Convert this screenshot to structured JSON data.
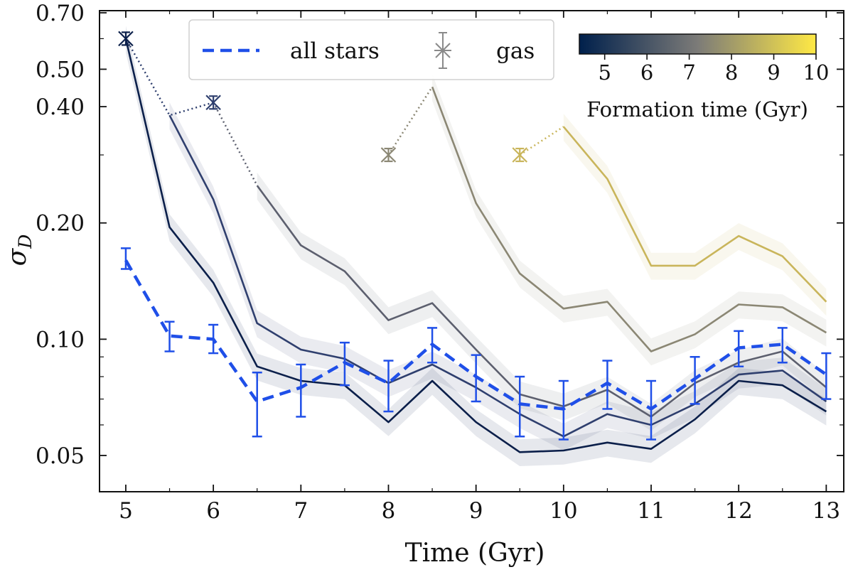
{
  "chart_data": {
    "type": "line",
    "xlabel": "Time (Gyr)",
    "ylabel": "σ_D",
    "ylabel_main": "σ",
    "ylabel_sub": "D",
    "yscale": "log",
    "xlim": [
      4.7,
      13.2
    ],
    "ylim": [
      0.04,
      0.7
    ],
    "xticks": [
      5,
      6,
      7,
      8,
      9,
      10,
      11,
      12,
      13
    ],
    "xtick_labels": [
      "5",
      "6",
      "7",
      "8",
      "9",
      "10",
      "11",
      "12",
      "13"
    ],
    "yticks": [
      0.05,
      0.1,
      0.2,
      0.4,
      0.5,
      0.7
    ],
    "ytick_labels": [
      "0.05",
      "0.10",
      "0.20",
      "0.40",
      "0.50",
      "0.70"
    ],
    "legend": {
      "position": "top-center",
      "entries": [
        {
          "label": "all stars",
          "style": "dashed-line",
          "color": "#1f4fe8"
        },
        {
          "label": "gas",
          "style": "errorbar-x",
          "color": "#8a8a8a"
        }
      ]
    },
    "colorbar": {
      "label": "Formation time (Gyr)",
      "range": [
        4.4,
        10
      ],
      "ticks": [
        5,
        6,
        7,
        8,
        9,
        10
      ],
      "tick_labels": [
        "5",
        "6",
        "7",
        "8",
        "9",
        "10"
      ],
      "position": "top-right"
    },
    "all_stars": {
      "name": "all stars",
      "color": "#1f4fe8",
      "x": [
        5,
        5.5,
        6,
        6.5,
        7,
        7.5,
        8,
        8.5,
        9,
        9.5,
        10,
        10.5,
        11,
        11.5,
        12,
        12.5,
        13
      ],
      "y": [
        0.16,
        0.102,
        0.1,
        0.069,
        0.075,
        0.087,
        0.077,
        0.097,
        0.08,
        0.068,
        0.066,
        0.077,
        0.066,
        0.079,
        0.095,
        0.097,
        0.081
      ],
      "err_low": [
        0.152,
        0.093,
        0.092,
        0.056,
        0.063,
        0.076,
        0.065,
        0.087,
        0.069,
        0.056,
        0.055,
        0.066,
        0.055,
        0.068,
        0.085,
        0.087,
        0.07
      ],
      "err_high": [
        0.172,
        0.111,
        0.109,
        0.082,
        0.086,
        0.098,
        0.088,
        0.107,
        0.091,
        0.08,
        0.078,
        0.088,
        0.078,
        0.09,
        0.105,
        0.107,
        0.092
      ]
    },
    "series": [
      {
        "name": "formation 5 Gyr",
        "formation_time": 5,
        "color": "#0b1f4a",
        "x": [
          5,
          5.5,
          6,
          6.5,
          7,
          7.5,
          8,
          8.5,
          9,
          9.5,
          10,
          10.5,
          11,
          11.5,
          12,
          12.5,
          13
        ],
        "y": [
          0.6,
          0.195,
          0.14,
          0.085,
          0.078,
          0.076,
          0.061,
          0.078,
          0.061,
          0.051,
          0.0515,
          0.054,
          0.052,
          0.062,
          0.078,
          0.076,
          0.065
        ],
        "gas_point": {
          "x": 5,
          "y": 0.6,
          "err": 0.015
        }
      },
      {
        "name": "formation 6 Gyr",
        "formation_time": 6,
        "color": "#2f3f6e",
        "x": [
          5.5,
          6,
          6.5,
          7,
          7.5,
          8,
          8.5,
          9,
          9.5,
          10,
          10.5,
          11,
          11.5,
          12,
          12.5,
          13
        ],
        "y": [
          0.38,
          0.23,
          0.11,
          0.094,
          0.089,
          0.077,
          0.086,
          0.075,
          0.064,
          0.056,
          0.064,
          0.06,
          0.068,
          0.081,
          0.083,
          0.069
        ],
        "gas_point": {
          "x": 6,
          "y": 0.41,
          "err": 0.012
        }
      },
      {
        "name": "formation 7 Gyr",
        "formation_time": 7,
        "color": "#5c5f6e",
        "x": [
          6.5,
          7,
          7.5,
          8,
          8.5,
          9,
          9.5,
          10,
          10.5,
          11,
          11.5,
          12,
          12.5,
          13
        ],
        "y": [
          0.25,
          0.175,
          0.15,
          0.112,
          0.124,
          0.094,
          0.072,
          0.067,
          0.074,
          0.063,
          0.077,
          0.087,
          0.093,
          0.075
        ]
      },
      {
        "name": "formation 8 Gyr",
        "formation_time": 8,
        "color": "#8b8774",
        "x": [
          8.5,
          9,
          9.5,
          10,
          10.5,
          11,
          11.5,
          12,
          12.5,
          13
        ],
        "y": [
          0.45,
          0.225,
          0.148,
          0.12,
          0.125,
          0.093,
          0.103,
          0.123,
          0.121,
          0.104
        ],
        "gas_point": {
          "x": 8,
          "y": 0.3,
          "err": 0.01
        }
      },
      {
        "name": "formation 9.5 Gyr",
        "formation_time": 9.5,
        "color": "#c9b55b",
        "x": [
          10,
          10.5,
          11,
          11.5,
          12,
          12.5,
          13
        ],
        "y": [
          0.355,
          0.26,
          0.155,
          0.155,
          0.185,
          0.164,
          0.125
        ],
        "gas_point": {
          "x": 9.5,
          "y": 0.3,
          "err": 0.012
        }
      }
    ]
  }
}
